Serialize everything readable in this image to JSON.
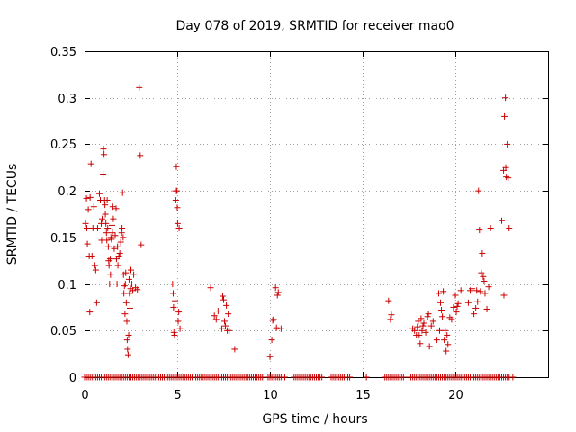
{
  "chart_data": {
    "type": "scatter",
    "title": "Day 078 of 2019, SRMTID for receiver mao0",
    "xlabel": "GPS time / hours",
    "ylabel": "SRMTID / TECUs",
    "xlim": [
      0,
      25
    ],
    "ylim": [
      0,
      0.35
    ],
    "xticks": [
      0,
      5,
      10,
      15,
      20
    ],
    "yticks": [
      0,
      0.05,
      0.1,
      0.15,
      0.2,
      0.25,
      0.3,
      0.35
    ],
    "xtick_labels": [
      "0",
      "5",
      "10",
      "15",
      "20"
    ],
    "ytick_labels": [
      "0",
      "0.05",
      "0.1",
      "0.15",
      "0.2",
      "0.25",
      "0.3",
      "0.35"
    ],
    "grid": true,
    "marker": "+",
    "color": "#cc0000",
    "series": [
      {
        "name": "SRMTID",
        "points": [
          [
            0.05,
            0.165
          ],
          [
            0.1,
            0.192
          ],
          [
            0.12,
            0.16
          ],
          [
            0.15,
            0.143
          ],
          [
            0.2,
            0.18
          ],
          [
            0.25,
            0.13
          ],
          [
            0.28,
            0.07
          ],
          [
            0.3,
            0.193
          ],
          [
            0.35,
            0.229
          ],
          [
            0.4,
            0.13
          ],
          [
            0.45,
            0.16
          ],
          [
            0.5,
            0.183
          ],
          [
            0.55,
            0.12
          ],
          [
            0.6,
            0.115
          ],
          [
            0.65,
            0.08
          ],
          [
            0.7,
            0.16
          ],
          [
            0.8,
            0.197
          ],
          [
            0.85,
            0.19
          ],
          [
            0.9,
            0.165
          ],
          [
            0.92,
            0.147
          ],
          [
            0.95,
            0.17
          ],
          [
            1.0,
            0.218
          ],
          [
            1.02,
            0.245
          ],
          [
            1.05,
            0.239
          ],
          [
            1.08,
            0.19
          ],
          [
            1.1,
            0.185
          ],
          [
            1.12,
            0.175
          ],
          [
            1.15,
            0.165
          ],
          [
            1.18,
            0.155
          ],
          [
            1.2,
            0.147
          ],
          [
            1.22,
            0.19
          ],
          [
            1.25,
            0.16
          ],
          [
            1.28,
            0.14
          ],
          [
            1.3,
            0.125
          ],
          [
            1.32,
            0.12
          ],
          [
            1.35,
            0.1
          ],
          [
            1.38,
            0.127
          ],
          [
            1.4,
            0.11
          ],
          [
            1.42,
            0.15
          ],
          [
            1.45,
            0.148
          ],
          [
            1.48,
            0.163
          ],
          [
            1.5,
            0.155
          ],
          [
            1.52,
            0.183
          ],
          [
            1.55,
            0.17
          ],
          [
            1.6,
            0.138
          ],
          [
            1.65,
            0.152
          ],
          [
            1.7,
            0.181
          ],
          [
            1.72,
            0.127
          ],
          [
            1.75,
            0.1
          ],
          [
            1.78,
            0.14
          ],
          [
            1.8,
            0.12
          ],
          [
            1.85,
            0.13
          ],
          [
            1.9,
            0.133
          ],
          [
            1.95,
            0.145
          ],
          [
            2.0,
            0.155
          ],
          [
            2.02,
            0.16
          ],
          [
            2.05,
            0.198
          ],
          [
            2.08,
            0.15
          ],
          [
            2.1,
            0.11
          ],
          [
            2.12,
            0.09
          ],
          [
            2.15,
            0.098
          ],
          [
            2.18,
            0.068
          ],
          [
            2.2,
            0.1
          ],
          [
            2.22,
            0.112
          ],
          [
            2.25,
            0.08
          ],
          [
            2.28,
            0.06
          ],
          [
            2.3,
            0.04
          ],
          [
            2.32,
            0.03
          ],
          [
            2.35,
            0.024
          ],
          [
            2.38,
            0.045
          ],
          [
            2.4,
            0.105
          ],
          [
            2.42,
            0.09
          ],
          [
            2.45,
            0.074
          ],
          [
            2.48,
            0.095
          ],
          [
            2.5,
            0.115
          ],
          [
            2.55,
            0.1
          ],
          [
            2.6,
            0.093
          ],
          [
            2.65,
            0.11
          ],
          [
            2.75,
            0.096
          ],
          [
            2.85,
            0.094
          ],
          [
            2.95,
            0.311
          ],
          [
            3.0,
            0.238
          ],
          [
            3.05,
            0.142
          ],
          [
            4.75,
            0.1
          ],
          [
            4.78,
            0.09
          ],
          [
            4.8,
            0.075
          ],
          [
            4.82,
            0.048
          ],
          [
            4.85,
            0.045
          ],
          [
            4.88,
            0.082
          ],
          [
            4.9,
            0.2
          ],
          [
            4.92,
            0.19
          ],
          [
            4.95,
            0.226
          ],
          [
            4.98,
            0.2
          ],
          [
            5.0,
            0.182
          ],
          [
            5.02,
            0.165
          ],
          [
            5.05,
            0.06
          ],
          [
            5.08,
            0.07
          ],
          [
            5.1,
            0.16
          ],
          [
            5.15,
            0.052
          ],
          [
            6.8,
            0.096
          ],
          [
            7.0,
            0.066
          ],
          [
            7.1,
            0.062
          ],
          [
            7.2,
            0.071
          ],
          [
            7.4,
            0.052
          ],
          [
            7.45,
            0.087
          ],
          [
            7.5,
            0.083
          ],
          [
            7.55,
            0.06
          ],
          [
            7.6,
            0.055
          ],
          [
            7.65,
            0.077
          ],
          [
            7.7,
            0.05
          ],
          [
            7.75,
            0.068
          ],
          [
            7.8,
            0.05
          ],
          [
            8.1,
            0.03
          ],
          [
            10.0,
            0.022
          ],
          [
            10.1,
            0.04
          ],
          [
            10.15,
            0.061
          ],
          [
            10.2,
            0.062
          ],
          [
            10.3,
            0.096
          ],
          [
            10.35,
            0.053
          ],
          [
            10.4,
            0.088
          ],
          [
            10.45,
            0.091
          ],
          [
            10.6,
            0.052
          ],
          [
            16.4,
            0.082
          ],
          [
            16.5,
            0.062
          ],
          [
            16.55,
            0.067
          ],
          [
            17.7,
            0.052
          ],
          [
            17.8,
            0.05
          ],
          [
            17.9,
            0.045
          ],
          [
            17.95,
            0.054
          ],
          [
            18.0,
            0.06
          ],
          [
            18.05,
            0.045
          ],
          [
            18.1,
            0.036
          ],
          [
            18.15,
            0.063
          ],
          [
            18.2,
            0.05
          ],
          [
            18.25,
            0.055
          ],
          [
            18.3,
            0.058
          ],
          [
            18.4,
            0.048
          ],
          [
            18.5,
            0.065
          ],
          [
            18.55,
            0.068
          ],
          [
            18.6,
            0.033
          ],
          [
            18.7,
            0.055
          ],
          [
            18.8,
            0.06
          ],
          [
            19.0,
            0.04
          ],
          [
            19.1,
            0.09
          ],
          [
            19.15,
            0.05
          ],
          [
            19.2,
            0.08
          ],
          [
            19.25,
            0.072
          ],
          [
            19.3,
            0.065
          ],
          [
            19.35,
            0.092
          ],
          [
            19.4,
            0.04
          ],
          [
            19.45,
            0.05
          ],
          [
            19.5,
            0.028
          ],
          [
            19.55,
            0.045
          ],
          [
            19.6,
            0.035
          ],
          [
            19.7,
            0.064
          ],
          [
            19.8,
            0.062
          ],
          [
            19.9,
            0.075
          ],
          [
            20.0,
            0.088
          ],
          [
            20.05,
            0.07
          ],
          [
            20.1,
            0.076
          ],
          [
            20.15,
            0.079
          ],
          [
            20.3,
            0.093
          ],
          [
            20.7,
            0.08
          ],
          [
            20.8,
            0.093
          ],
          [
            20.9,
            0.095
          ],
          [
            21.0,
            0.068
          ],
          [
            21.1,
            0.074
          ],
          [
            21.15,
            0.093
          ],
          [
            21.2,
            0.081
          ],
          [
            21.25,
            0.2
          ],
          [
            21.3,
            0.158
          ],
          [
            21.35,
            0.092
          ],
          [
            21.4,
            0.112
          ],
          [
            21.45,
            0.133
          ],
          [
            21.5,
            0.108
          ],
          [
            21.55,
            0.103
          ],
          [
            21.6,
            0.09
          ],
          [
            21.7,
            0.073
          ],
          [
            21.8,
            0.097
          ],
          [
            21.9,
            0.16
          ],
          [
            22.5,
            0.168
          ],
          [
            22.6,
            0.222
          ],
          [
            22.62,
            0.088
          ],
          [
            22.65,
            0.28
          ],
          [
            22.7,
            0.3
          ],
          [
            22.72,
            0.225
          ],
          [
            22.75,
            0.215
          ],
          [
            22.8,
            0.25
          ],
          [
            22.85,
            0.214
          ],
          [
            22.9,
            0.16
          ]
        ]
      }
    ],
    "zero_band": {
      "description": "dense row of zero-valued markers",
      "x_ranges": [
        [
          0.0,
          5.8
        ],
        [
          6.0,
          9.6
        ],
        [
          9.9,
          10.8
        ],
        [
          11.3,
          12.8
        ],
        [
          13.3,
          14.3
        ],
        [
          16.2,
          17.2
        ],
        [
          17.5,
          22.9
        ]
      ],
      "x_singles": [
        15.2,
        23.1
      ],
      "step": 0.1
    }
  }
}
